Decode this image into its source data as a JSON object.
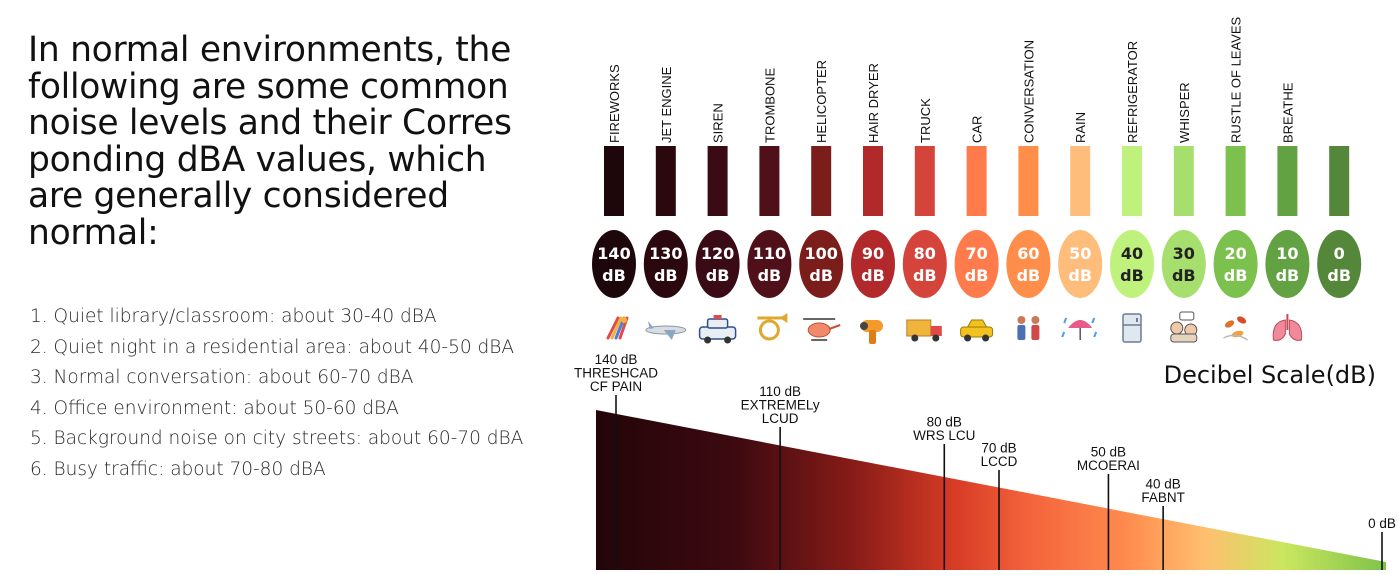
{
  "headline": [
    "In normal environments, the",
    "following are some common",
    "noise levels and their Corres",
    "ponding dBA values, which",
    "are generally considered",
    "normal:"
  ],
  "list": [
    "1. Quiet library/classroom: about 30-40 dBA",
    "2. Quiet night in a residential area: about 40-50 dBA",
    "3. Normal conversation: about 60-70 dBA",
    "4. Office environment: about 50-60 dBA",
    "5. Background noise on city streets: about 60-70 dBA",
    "6. Busy traffic: about 70-80 dBA"
  ],
  "chart_data": {
    "type": "bar",
    "title": "Decibel Scale(dB)",
    "unit": "dB",
    "categories": [
      "FIREWORKS",
      "JET ENGINE",
      "SIREN",
      "TROMBONE",
      "HELICOPTER",
      "HAIR DRYER",
      "TRUCK",
      "CAR",
      "CONVERSATION",
      "RAIN",
      "REFRIGERATOR",
      "WHISPER",
      "RUSTLE OF LEAVES",
      "BREATHE",
      ""
    ],
    "values": [
      140,
      130,
      120,
      110,
      100,
      90,
      80,
      70,
      60,
      50,
      40,
      30,
      20,
      10,
      0
    ],
    "bubble_labels": [
      [
        "140",
        "dB"
      ],
      [
        "130",
        "dB"
      ],
      [
        "120",
        "dB"
      ],
      [
        "110",
        "dB"
      ],
      [
        "100",
        "dB"
      ],
      [
        "90",
        "dB"
      ],
      [
        "80",
        "dB"
      ],
      [
        "70",
        "dB"
      ],
      [
        "60",
        "dB"
      ],
      [
        "50",
        "dB"
      ],
      [
        "40",
        "dB"
      ],
      [
        "30",
        "dB"
      ],
      [
        "20",
        "dB"
      ],
      [
        "10",
        "dB"
      ],
      [
        "0",
        "dB"
      ]
    ],
    "colors": [
      "#1e070b",
      "#2a080e",
      "#3a0b14",
      "#501019",
      "#7a1d1b",
      "#b1292a",
      "#d5443b",
      "#ff7b4c",
      "#ff8e4a",
      "#ffbd7c",
      "#bff27c",
      "#a7df6f",
      "#7cc04d",
      "#62a243",
      "#55873a"
    ],
    "icons": [
      "fireworks-icon",
      "airplane-icon",
      "police-car-icon",
      "trombone-icon",
      "helicopter-icon",
      "hair-dryer-icon",
      "truck-icon",
      "car-icon",
      "people-talking-icon",
      "rain-icon",
      "refrigerator-icon",
      "whisper-icon",
      "leaves-icon",
      "lungs-icon",
      ""
    ],
    "gradient_scale": {
      "x_range": [
        140,
        0
      ],
      "markers": [
        {
          "value": 140,
          "label": [
            "140 dB",
            "THRESHCAD",
            "CF PAIN"
          ]
        },
        {
          "value": 110,
          "label": [
            "110 dB",
            "EXTREMELy",
            "LCUD"
          ]
        },
        {
          "value": 80,
          "label": [
            "80 dB",
            "WRS LCU"
          ]
        },
        {
          "value": 70,
          "label": [
            "70 dB",
            "LCCD"
          ]
        },
        {
          "value": 50,
          "label": [
            "50 dB",
            "MCOERAI"
          ]
        },
        {
          "value": 40,
          "label": [
            "40 dB",
            "FABNT"
          ]
        },
        {
          "value": 0,
          "label": [
            "0 dB"
          ]
        }
      ]
    }
  }
}
